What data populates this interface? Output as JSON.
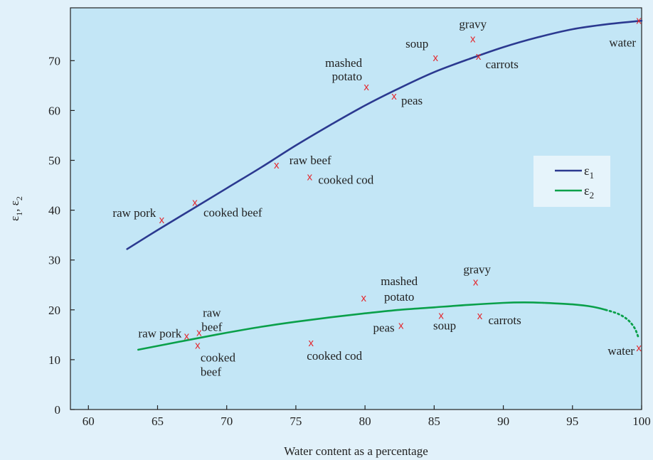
{
  "chart_data": {
    "type": "scatter",
    "xlabel": "Water content as a percentage",
    "ylabel": "ε1, ε2",
    "xlim": [
      58.7,
      100
    ],
    "ylim": [
      0,
      80.6
    ],
    "x_ticks": [
      60,
      65,
      70,
      75,
      80,
      85,
      90,
      95,
      100
    ],
    "y_ticks": [
      0,
      10,
      20,
      30,
      40,
      50,
      60,
      70
    ],
    "grid": false,
    "legend_position": "right",
    "colors": {
      "plot_background": "#c3e6f6",
      "page_background": "#e1f1fa",
      "legend_background": "#e6f4fb",
      "eps1_line": "#2b3990",
      "eps2_line": "#0aa04a",
      "marker": "#e4262c"
    },
    "series": [
      {
        "name": "ε1",
        "curve": [
          [
            62.8,
            32.2
          ],
          [
            65,
            36.0
          ],
          [
            67.5,
            40.2
          ],
          [
            70,
            44.4
          ],
          [
            72.5,
            48.6
          ],
          [
            75,
            53.0
          ],
          [
            77.5,
            57.1
          ],
          [
            80,
            61.0
          ],
          [
            82.5,
            64.5
          ],
          [
            85,
            67.7
          ],
          [
            87.5,
            70.3
          ],
          [
            90,
            72.7
          ],
          [
            92.5,
            74.7
          ],
          [
            95,
            76.3
          ],
          [
            97.5,
            77.3
          ],
          [
            100,
            78.0
          ]
        ],
        "points": [
          {
            "label": "raw pork",
            "x": 65.3,
            "y": 38.1
          },
          {
            "label": "cooked beef",
            "x": 67.7,
            "y": 41.6
          },
          {
            "label": "raw beef",
            "x": 73.6,
            "y": 49.1
          },
          {
            "label": "cooked cod",
            "x": 76.0,
            "y": 46.7
          },
          {
            "label": "mashed potato",
            "x": 80.1,
            "y": 64.8
          },
          {
            "label": "peas",
            "x": 82.1,
            "y": 62.9
          },
          {
            "label": "soup",
            "x": 85.1,
            "y": 70.6
          },
          {
            "label": "gravy",
            "x": 87.8,
            "y": 74.4
          },
          {
            "label": "carrots",
            "x": 88.2,
            "y": 70.9
          },
          {
            "label": "water",
            "x": 99.8,
            "y": 78.1
          }
        ]
      },
      {
        "name": "ε2",
        "curve": [
          [
            63.6,
            12.0
          ],
          [
            67.5,
            14.1
          ],
          [
            70,
            15.4
          ],
          [
            72.5,
            16.6
          ],
          [
            75,
            17.6
          ],
          [
            77.5,
            18.5
          ],
          [
            80,
            19.3
          ],
          [
            82.5,
            20.0
          ],
          [
            85,
            20.5
          ],
          [
            87.5,
            21.0
          ],
          [
            90,
            21.4
          ],
          [
            91.5,
            21.5
          ],
          [
            93,
            21.4
          ],
          [
            95,
            21.1
          ],
          [
            96.5,
            20.6
          ],
          [
            97.4,
            20.0
          ]
        ],
        "curve_dotted": [
          [
            97.4,
            20.0
          ],
          [
            98.3,
            19.2
          ],
          [
            99,
            18.0
          ],
          [
            99.5,
            16.3
          ],
          [
            99.8,
            14.2
          ]
        ],
        "points": [
          {
            "label": "raw pork",
            "x": 67.1,
            "y": 14.8
          },
          {
            "label": "raw beef",
            "x": 68.0,
            "y": 15.5
          },
          {
            "label": "cooked beef",
            "x": 67.9,
            "y": 12.9
          },
          {
            "label": "cooked cod",
            "x": 76.1,
            "y": 13.4
          },
          {
            "label": "mashed potato",
            "x": 79.9,
            "y": 22.4
          },
          {
            "label": "peas",
            "x": 82.6,
            "y": 16.9
          },
          {
            "label": "soup",
            "x": 85.5,
            "y": 18.9
          },
          {
            "label": "gravy",
            "x": 88.0,
            "y": 25.6
          },
          {
            "label": "carrots",
            "x": 88.3,
            "y": 18.8
          },
          {
            "label": "water",
            "x": 99.8,
            "y": 12.4
          }
        ]
      }
    ],
    "marker_symbol": "x",
    "legend_subscripts": [
      "1",
      "2"
    ],
    "legend_symbol": "ε"
  }
}
